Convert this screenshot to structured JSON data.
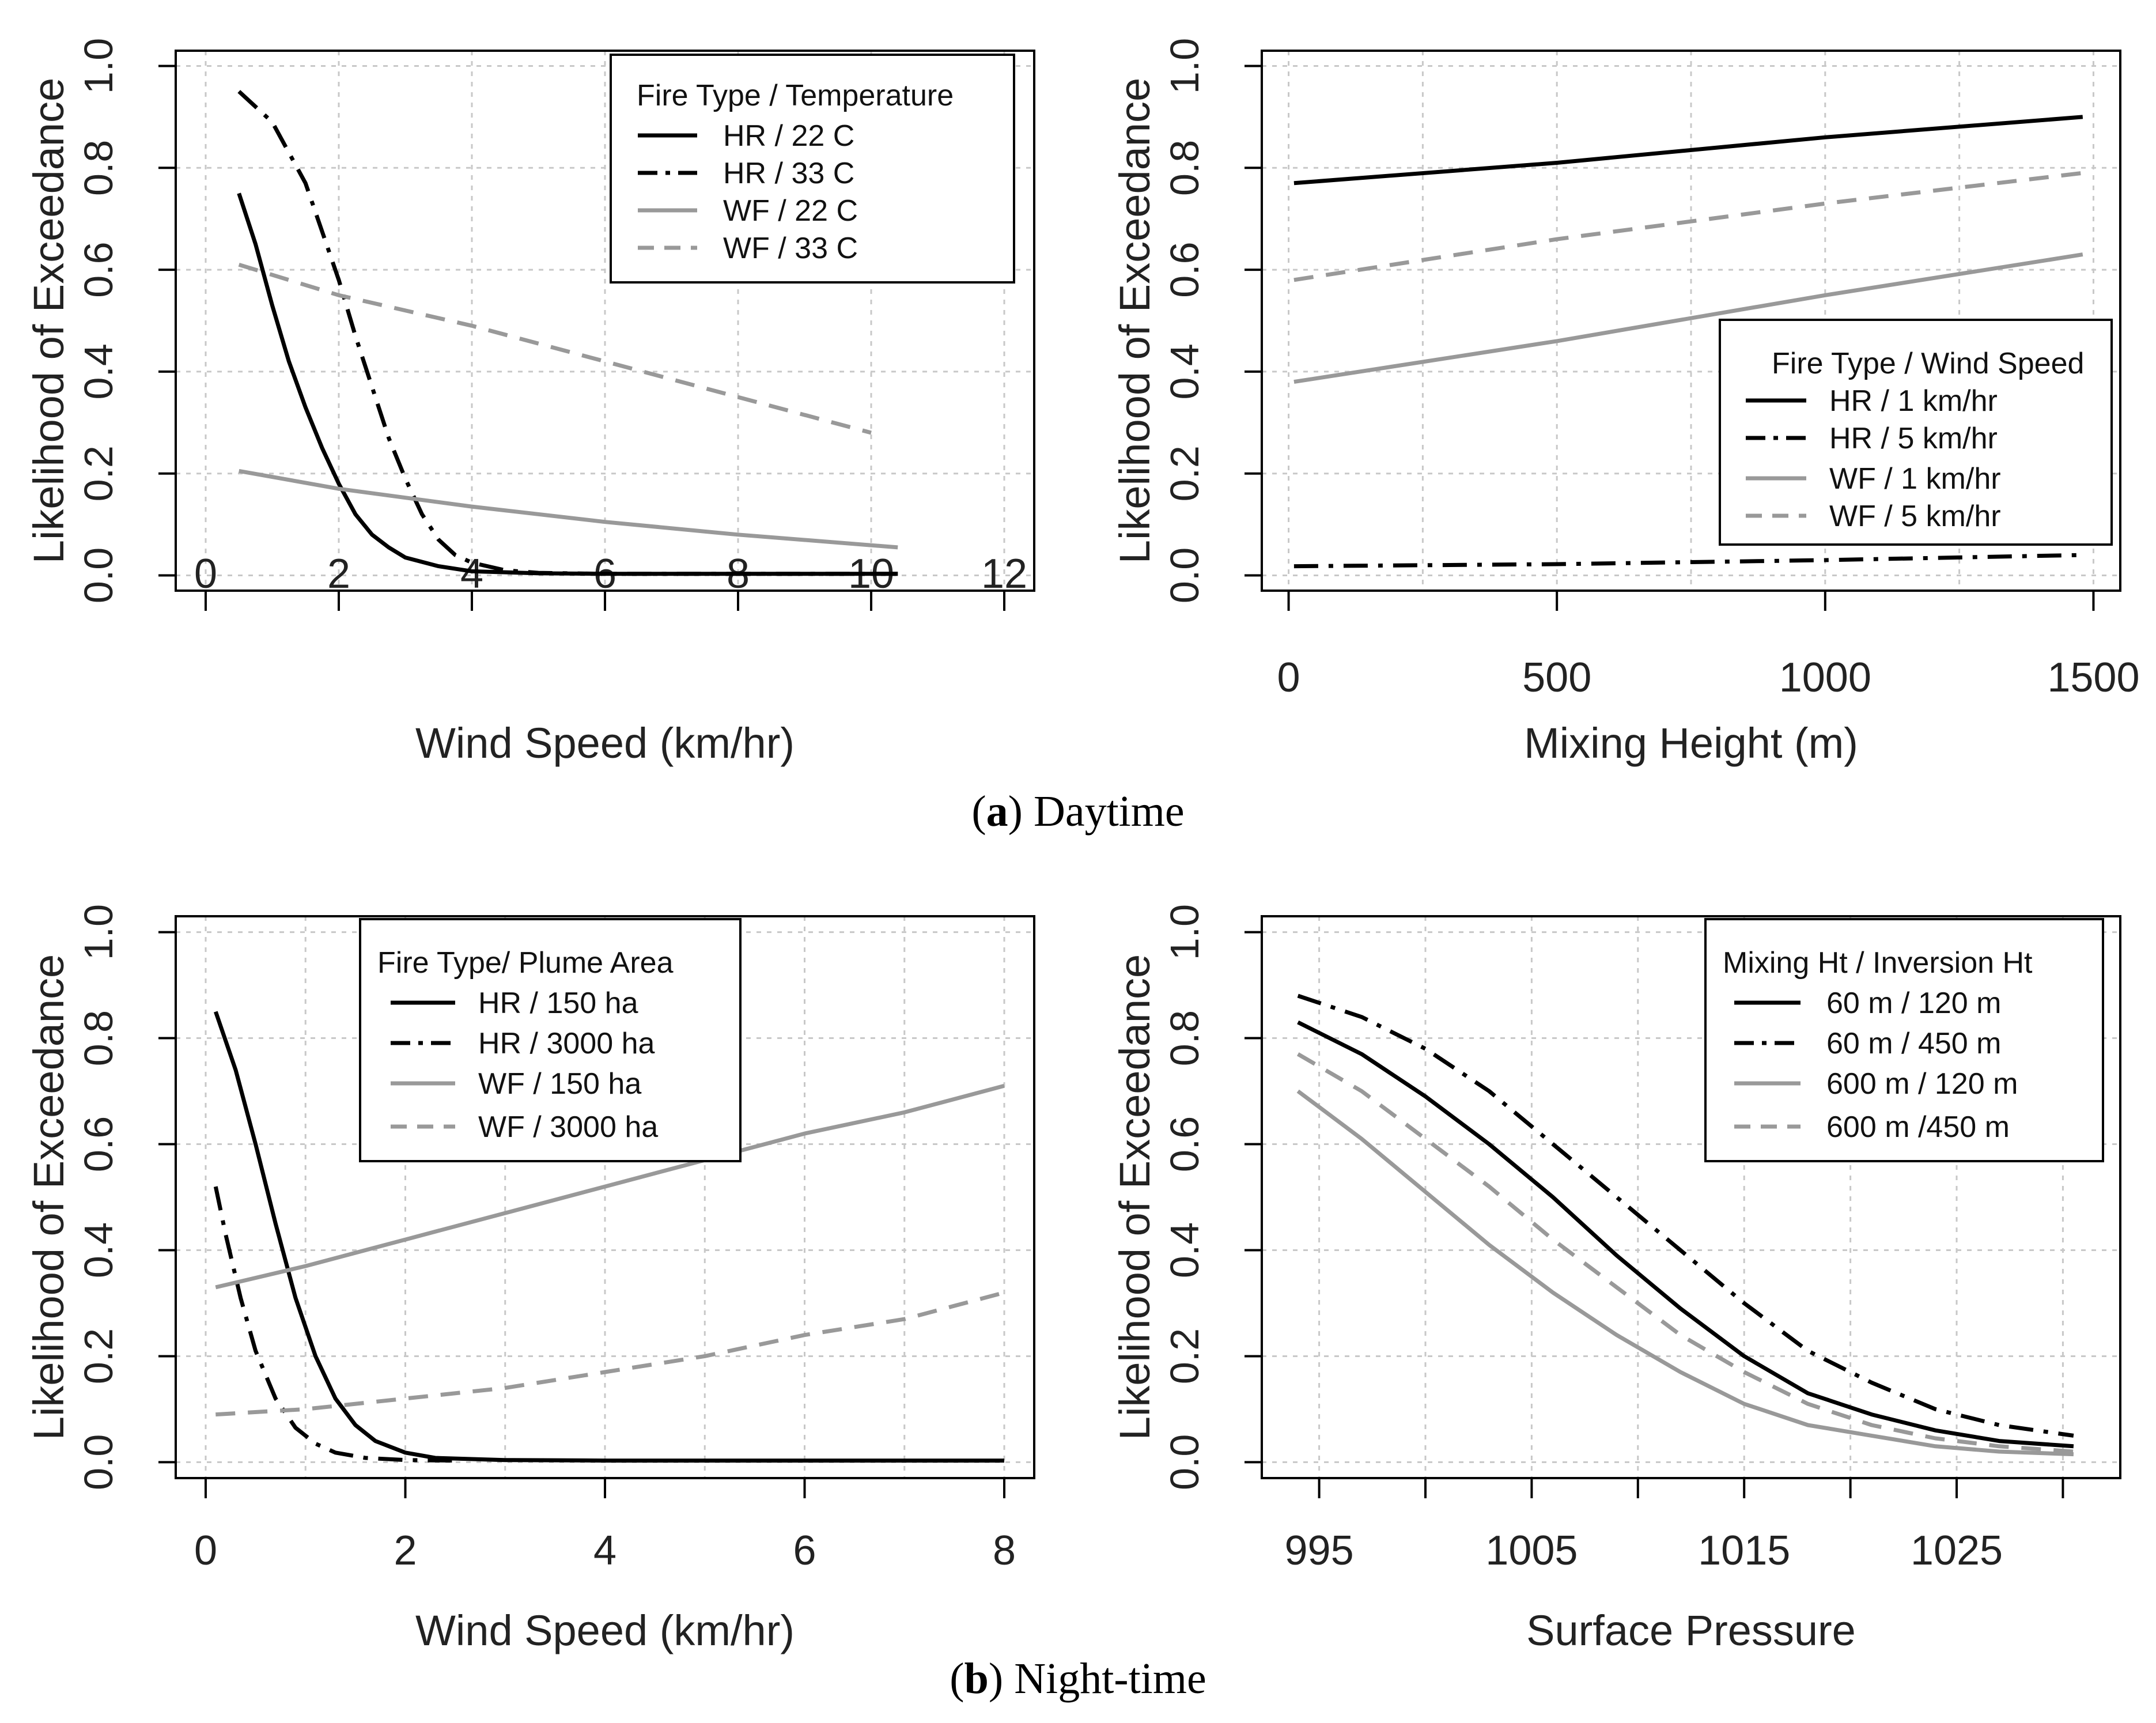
{
  "figure": {
    "caption_a": {
      "letter": "a",
      "text": "Daytime"
    },
    "caption_b": {
      "letter": "b",
      "text": "Night-time"
    }
  },
  "chart_data": [
    {
      "id": "day-wind",
      "type": "line",
      "xlabel": "Wind Speed (km/hr)",
      "ylabel": "Likelihood of Exceedance",
      "xlim": [
        -0.45,
        12.45
      ],
      "ylim": [
        -0.03,
        1.03
      ],
      "xticks": [
        0,
        2,
        4,
        6,
        8,
        10,
        12
      ],
      "xtick_labels": [
        "0",
        "2",
        "4",
        "6",
        "8",
        "10",
        "12"
      ],
      "yticks": [
        0,
        0.2,
        0.4,
        0.6,
        0.8,
        1.0
      ],
      "ytick_labels": [
        "0.0",
        "0.2",
        "0.4",
        "0.6",
        "0.8",
        "1.0"
      ],
      "grid_x": [
        0,
        2,
        4,
        6,
        8,
        10,
        12
      ],
      "grid_y": [
        0,
        0.2,
        0.4,
        0.6,
        0.8,
        1.0
      ],
      "legend": {
        "title": "Fire Type / Temperature",
        "position": "top-right"
      },
      "series": [
        {
          "name": "HR / 22 C",
          "color": "#000000",
          "dash": "solid",
          "x": [
            0.5,
            0.75,
            1.0,
            1.25,
            1.5,
            1.75,
            2.0,
            2.25,
            2.5,
            2.75,
            3.0,
            3.5,
            4.0,
            5.0,
            6.0,
            8.0,
            10.4
          ],
          "y": [
            0.75,
            0.65,
            0.53,
            0.42,
            0.33,
            0.25,
            0.18,
            0.12,
            0.08,
            0.055,
            0.035,
            0.018,
            0.008,
            0.004,
            0.003,
            0.003,
            0.003
          ]
        },
        {
          "name": "HR / 33 C",
          "color": "#000000",
          "dash": "dashdot",
          "x": [
            0.5,
            1.0,
            1.5,
            2.0,
            2.25,
            2.5,
            2.75,
            3.0,
            3.25,
            3.5,
            3.75,
            4.0,
            4.5,
            5.0,
            6.0,
            8.0,
            10.4
          ],
          "y": [
            0.95,
            0.89,
            0.77,
            0.58,
            0.47,
            0.37,
            0.27,
            0.19,
            0.12,
            0.07,
            0.04,
            0.025,
            0.01,
            0.005,
            0.003,
            0.003,
            0.003
          ]
        },
        {
          "name": "WF / 22 C",
          "color": "#999999",
          "dash": "solid",
          "x": [
            0.5,
            2,
            4,
            6,
            8,
            10.4
          ],
          "y": [
            0.205,
            0.17,
            0.135,
            0.105,
            0.08,
            0.055
          ]
        },
        {
          "name": "WF / 33 C",
          "color": "#999999",
          "dash": "dashed",
          "x": [
            0.5,
            2,
            4,
            6,
            8,
            10
          ],
          "y": [
            0.61,
            0.55,
            0.49,
            0.42,
            0.35,
            0.28
          ]
        }
      ]
    },
    {
      "id": "day-mixing",
      "type": "line",
      "xlabel": "Mixing Height (m)",
      "ylabel": "Likelihood of Exceedance",
      "xlim": [
        -50,
        1550
      ],
      "ylim": [
        -0.03,
        1.03
      ],
      "xticks": [
        0,
        500,
        1000,
        1500
      ],
      "xtick_labels": [
        "0",
        "500",
        "1000",
        "1500"
      ],
      "yticks": [
        0,
        0.2,
        0.4,
        0.6,
        0.8,
        1.0
      ],
      "ytick_labels": [
        "0.0",
        "0.2",
        "0.4",
        "0.6",
        "0.8",
        "1.0"
      ],
      "grid_x": [
        0,
        250,
        500,
        750,
        1000,
        1250,
        1500
      ],
      "grid_y": [
        0,
        0.2,
        0.4,
        0.6,
        0.8,
        1.0
      ],
      "legend": {
        "title": "Fire Type / Wind Speed",
        "position": "right"
      },
      "series": [
        {
          "name": "HR / 1 km/hr",
          "color": "#000000",
          "dash": "solid",
          "x": [
            10,
            500,
            1000,
            1480
          ],
          "y": [
            0.77,
            0.81,
            0.86,
            0.9
          ]
        },
        {
          "name": "HR / 5 km/hr",
          "color": "#000000",
          "dash": "dashdot",
          "x": [
            10,
            500,
            1000,
            1480
          ],
          "y": [
            0.018,
            0.022,
            0.03,
            0.04
          ]
        },
        {
          "name": "WF / 1 km/hr",
          "color": "#999999",
          "dash": "solid",
          "x": [
            10,
            500,
            1000,
            1480
          ],
          "y": [
            0.38,
            0.46,
            0.55,
            0.63
          ]
        },
        {
          "name": "WF / 5 km/hr",
          "color": "#999999",
          "dash": "dashed",
          "x": [
            10,
            500,
            1000,
            1480
          ],
          "y": [
            0.58,
            0.66,
            0.73,
            0.79
          ]
        }
      ]
    },
    {
      "id": "night-wind",
      "type": "line",
      "xlabel": "Wind Speed (km/hr)",
      "ylabel": "Likelihood of Exceedance",
      "xlim": [
        -0.3,
        8.3
      ],
      "ylim": [
        -0.03,
        1.03
      ],
      "xticks": [
        0,
        2,
        4,
        6,
        8
      ],
      "xtick_labels": [
        "0",
        "2",
        "4",
        "6",
        "8"
      ],
      "yticks": [
        0,
        0.2,
        0.4,
        0.6,
        0.8,
        1.0
      ],
      "ytick_labels": [
        "0.0",
        "0.2",
        "0.4",
        "0.6",
        "0.8",
        "1.0"
      ],
      "grid_x": [
        0,
        1,
        2,
        3,
        4,
        5,
        6,
        7,
        8
      ],
      "grid_y": [
        0,
        0.2,
        0.4,
        0.6,
        0.8,
        1.0
      ],
      "legend": {
        "title": "Fire Type/ Plume Area",
        "position": "top-left"
      },
      "series": [
        {
          "name": "HR / 150 ha",
          "color": "#000000",
          "dash": "solid",
          "x": [
            0.1,
            0.3,
            0.5,
            0.7,
            0.9,
            1.1,
            1.3,
            1.5,
            1.7,
            2.0,
            2.3,
            3.0,
            4.0,
            6.0,
            8.0
          ],
          "y": [
            0.85,
            0.74,
            0.6,
            0.45,
            0.31,
            0.2,
            0.12,
            0.07,
            0.04,
            0.018,
            0.008,
            0.004,
            0.003,
            0.003,
            0.003
          ]
        },
        {
          "name": "HR / 3000 ha",
          "color": "#000000",
          "dash": "dashdot",
          "x": [
            0.1,
            0.2,
            0.35,
            0.5,
            0.7,
            0.9,
            1.1,
            1.3,
            1.6,
            2.0,
            2.5
          ],
          "y": [
            0.52,
            0.43,
            0.31,
            0.21,
            0.12,
            0.065,
            0.035,
            0.018,
            0.008,
            0.004,
            0.003
          ]
        },
        {
          "name": "WF / 150 ha",
          "color": "#999999",
          "dash": "solid",
          "x": [
            0.1,
            1,
            2,
            3,
            4,
            5,
            6,
            7,
            8
          ],
          "y": [
            0.33,
            0.37,
            0.42,
            0.47,
            0.52,
            0.57,
            0.62,
            0.66,
            0.71
          ]
        },
        {
          "name": "WF / 3000 ha",
          "color": "#999999",
          "dash": "dashed",
          "x": [
            0.1,
            1,
            2,
            3,
            4,
            5,
            6,
            7,
            8
          ],
          "y": [
            0.09,
            0.1,
            0.12,
            0.14,
            0.17,
            0.2,
            0.24,
            0.27,
            0.32
          ]
        }
      ]
    },
    {
      "id": "night-pressure",
      "type": "line",
      "xlabel": "Surface Pressure",
      "ylabel": "Likelihood of Exceedance",
      "xlim": [
        992.3,
        1032.7
      ],
      "ylim": [
        -0.03,
        1.03
      ],
      "xticks": [
        995,
        1000,
        1005,
        1010,
        1015,
        1020,
        1025,
        1030
      ],
      "xtick_labels": [
        "995",
        "",
        "1005",
        "",
        "1015",
        "",
        "1025",
        ""
      ],
      "yticks": [
        0,
        0.2,
        0.4,
        0.6,
        0.8,
        1.0
      ],
      "ytick_labels": [
        "0.0",
        "0.2",
        "0.4",
        "0.6",
        "0.8",
        "1.0"
      ],
      "grid_x": [
        995,
        1000,
        1005,
        1010,
        1015,
        1020,
        1025,
        1030
      ],
      "grid_y": [
        0,
        0.2,
        0.4,
        0.6,
        0.8,
        1.0
      ],
      "legend": {
        "title": "Mixing  Ht / Inversion Ht",
        "position": "top-right"
      },
      "series": [
        {
          "name": "60 m / 120 m",
          "color": "#000000",
          "dash": "solid",
          "x": [
            994,
            997,
            1000,
            1003,
            1006,
            1009,
            1012,
            1015,
            1018,
            1021,
            1024,
            1027,
            1030.5
          ],
          "y": [
            0.83,
            0.77,
            0.69,
            0.6,
            0.5,
            0.39,
            0.29,
            0.2,
            0.13,
            0.09,
            0.06,
            0.04,
            0.03
          ]
        },
        {
          "name": "60 m / 450 m",
          "color": "#000000",
          "dash": "dashdot",
          "x": [
            994,
            997,
            1000,
            1003,
            1006,
            1009,
            1012,
            1015,
            1018,
            1021,
            1024,
            1027,
            1030.5
          ],
          "y": [
            0.88,
            0.84,
            0.78,
            0.7,
            0.6,
            0.5,
            0.4,
            0.3,
            0.21,
            0.15,
            0.1,
            0.07,
            0.05
          ]
        },
        {
          "name": "600 m / 120 m",
          "color": "#999999",
          "dash": "solid",
          "x": [
            994,
            997,
            1000,
            1003,
            1006,
            1009,
            1012,
            1015,
            1018,
            1021,
            1024,
            1027,
            1030.5
          ],
          "y": [
            0.7,
            0.61,
            0.51,
            0.41,
            0.32,
            0.24,
            0.17,
            0.11,
            0.07,
            0.05,
            0.03,
            0.02,
            0.015
          ]
        },
        {
          "name": "600 m /450 m",
          "color": "#999999",
          "dash": "dashed",
          "x": [
            994,
            997,
            1000,
            1003,
            1006,
            1009,
            1012,
            1015,
            1018,
            1021,
            1024,
            1027,
            1030.5
          ],
          "y": [
            0.77,
            0.7,
            0.61,
            0.52,
            0.42,
            0.33,
            0.24,
            0.17,
            0.11,
            0.07,
            0.045,
            0.03,
            0.02
          ]
        }
      ]
    }
  ]
}
